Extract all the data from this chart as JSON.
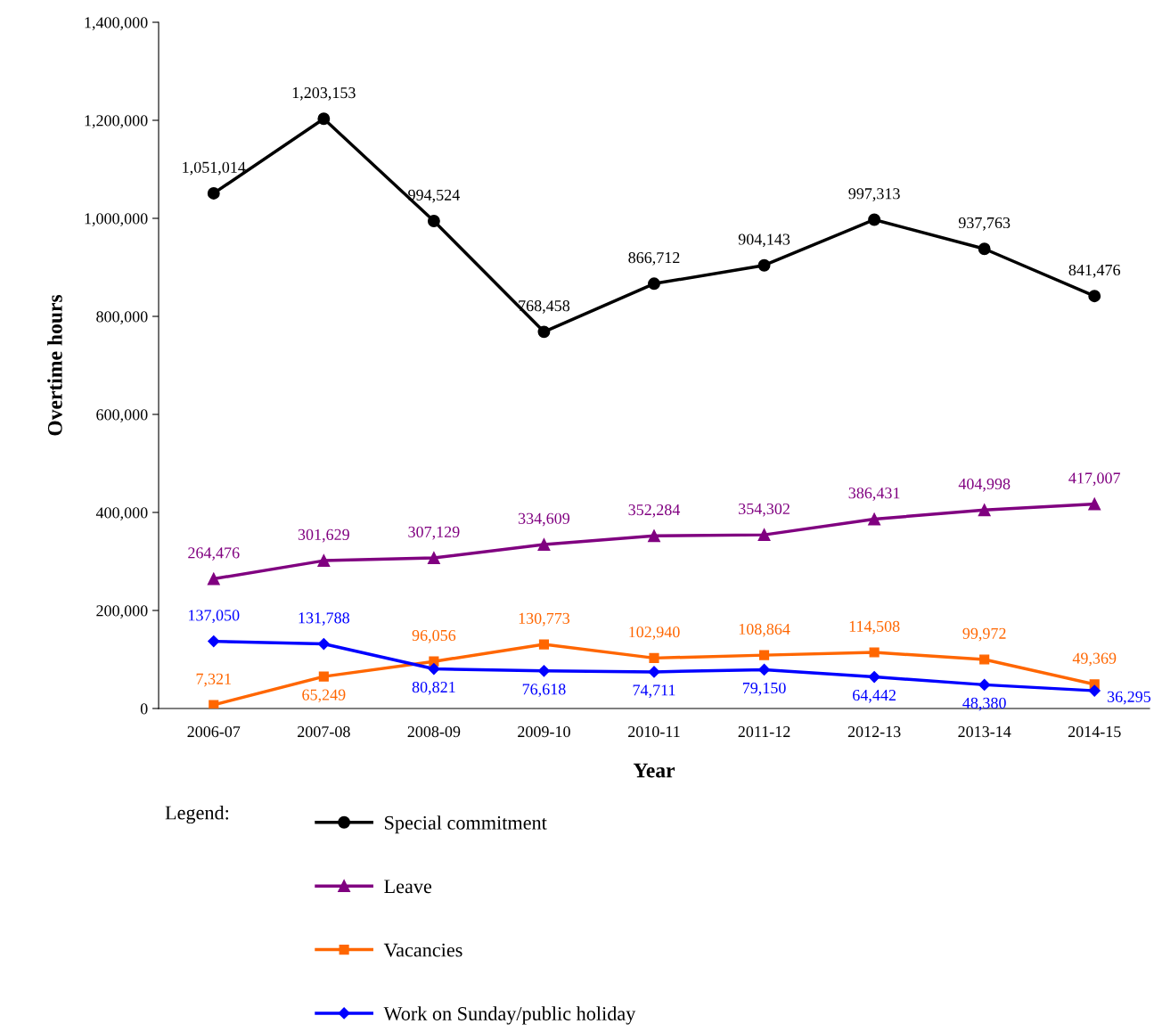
{
  "chart_data": {
    "type": "line",
    "xlabel": "Year",
    "ylabel": "Overtime hours",
    "legend_title": "Legend:",
    "categories": [
      "2006-07",
      "2007-08",
      "2008-09",
      "2009-10",
      "2010-11",
      "2011-12",
      "2012-13",
      "2013-14",
      "2014-15"
    ],
    "series": [
      {
        "name": "Special commitment",
        "color": "#000000",
        "marker": "circle",
        "values": [
          1051014,
          1203153,
          994524,
          768458,
          866712,
          904143,
          997313,
          937763,
          841476
        ],
        "value_labels": [
          "1,051,014",
          "1,203,153",
          "994,524",
          "768,458",
          "866,712",
          "904,143",
          "997,313",
          "937,763",
          "841,476"
        ]
      },
      {
        "name": "Leave",
        "color": "#800080",
        "marker": "triangle",
        "values": [
          264476,
          301629,
          307129,
          334609,
          352284,
          354302,
          386431,
          404998,
          417007
        ],
        "value_labels": [
          "264,476",
          "301,629",
          "307,129",
          "334,609",
          "352,284",
          "354,302",
          "386,431",
          "404,998",
          "417,007"
        ]
      },
      {
        "name": "Vacancies",
        "color": "#ff6600",
        "marker": "square",
        "values": [
          7321,
          65249,
          96056,
          130773,
          102940,
          108864,
          114508,
          99972,
          49369
        ],
        "value_labels": [
          "7,321",
          "65,249",
          "96,056",
          "130,773",
          "102,940",
          "108,864",
          "114,508",
          "99,972",
          "49,369"
        ]
      },
      {
        "name": "Work on Sunday/public holiday",
        "color": "#0000ff",
        "marker": "diamond",
        "values": [
          137050,
          131788,
          80821,
          76618,
          74711,
          79150,
          64442,
          48380,
          36295
        ],
        "value_labels": [
          "137,050",
          "131,788",
          "80,821",
          "76,618",
          "74,711",
          "79,150",
          "64,442",
          "48,380",
          "36,295"
        ]
      }
    ],
    "ylim": [
      0,
      1400000
    ],
    "yticks": [
      0,
      {
        "value": 200000,
        "label": "200,000"
      },
      {
        "value": 400000,
        "label": "400,000"
      },
      {
        "value": 600000,
        "label": "600,000"
      },
      {
        "value": 800000,
        "label": "800,000"
      },
      {
        "value": 1000000,
        "label": "1,000,000"
      },
      {
        "value": 1200000,
        "label": "1,200,000"
      },
      {
        "value": 1400000,
        "label": "1,400,000"
      }
    ],
    "legend": "bottom",
    "grid": false,
    "line_style": "solid"
  }
}
